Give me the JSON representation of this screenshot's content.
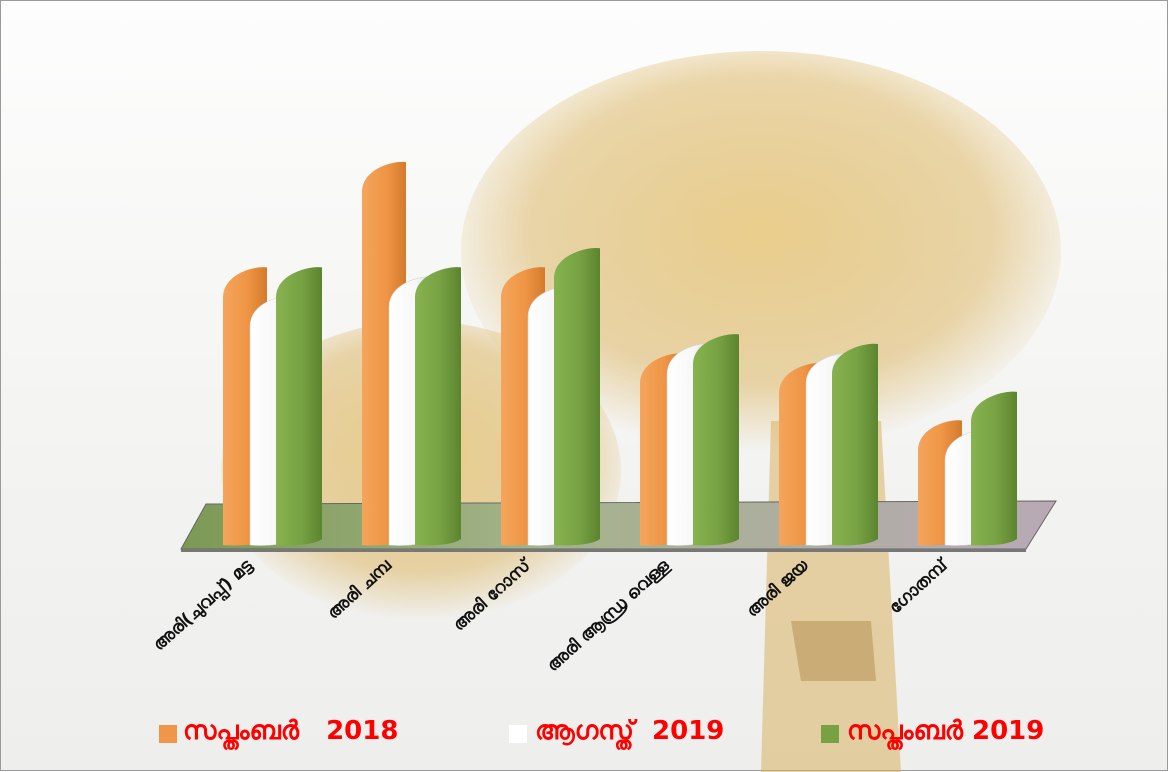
{
  "chart_data": {
    "type": "bar",
    "categories": [
      "അരി(ചുവപ്പ്) മട്ട",
      "അരി ചമ്പ",
      "അരി റോസ്",
      "അരി ആന്ധ്ര വെള്ള",
      "അരി ജയ",
      "ഗോതമ്പ്"
    ],
    "series": [
      {
        "name": "സപ്തംബർ   2018",
        "values": [
          29,
          40,
          29,
          20,
          19,
          13
        ],
        "color": "#f0964a"
      },
      {
        "name": "ആഗസ്ത്  2019",
        "values": [
          26,
          28,
          27,
          21,
          20,
          12
        ],
        "color": "#ffffff"
      },
      {
        "name": "സപ്തംബർ 2019",
        "values": [
          29,
          29,
          31,
          22,
          21,
          16
        ],
        "color": "#77a243"
      }
    ],
    "ylim": [
      0,
      42
    ],
    "grid": false,
    "legend_position": "bottom",
    "legend_text_color": "#ff0000"
  }
}
